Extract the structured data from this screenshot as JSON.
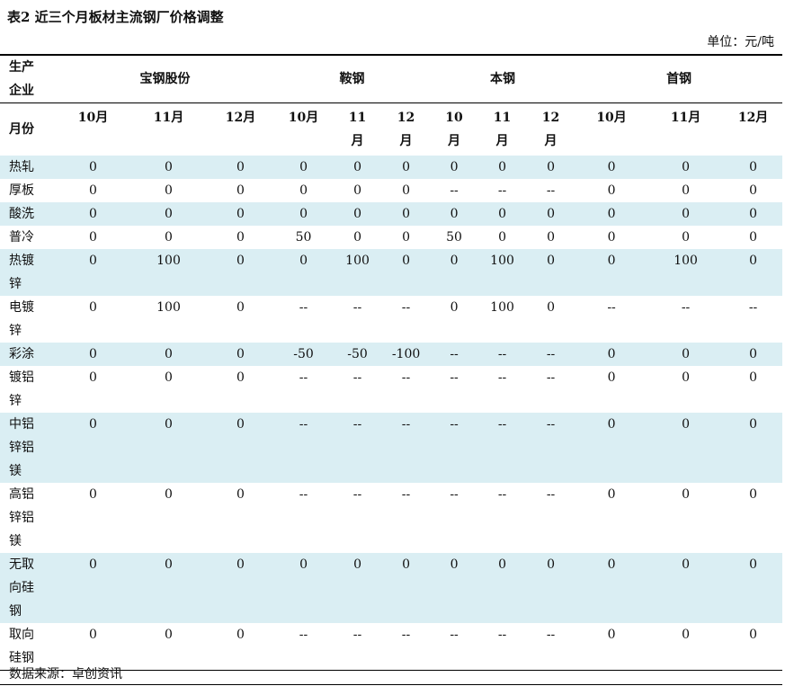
{
  "title": "表2 近三个月板材主流钢厂价格调整",
  "unit": "单位：元/吨",
  "header": {
    "company_label": "生产企业",
    "companies": [
      "宝钢股份",
      "鞍钢",
      "本钢",
      "首钢"
    ],
    "month_label": "月份",
    "months": [
      "10月",
      "11月",
      "12月",
      "10月",
      "11月",
      "12月",
      "10月",
      "11月",
      "12月",
      "10月",
      "11月",
      "12月"
    ]
  },
  "rows": [
    {
      "product": "热轧",
      "values": [
        "0",
        "0",
        "0",
        "0",
        "0",
        "0",
        "0",
        "0",
        "0",
        "0",
        "0",
        "0"
      ]
    },
    {
      "product": "厚板",
      "values": [
        "0",
        "0",
        "0",
        "0",
        "0",
        "0",
        "--",
        "--",
        "--",
        "0",
        "0",
        "0"
      ]
    },
    {
      "product": "酸洗",
      "values": [
        "0",
        "0",
        "0",
        "0",
        "0",
        "0",
        "0",
        "0",
        "0",
        "0",
        "0",
        "0"
      ]
    },
    {
      "product": "普冷",
      "values": [
        "0",
        "0",
        "0",
        "50",
        "0",
        "0",
        "50",
        "0",
        "0",
        "0",
        "0",
        "0"
      ]
    },
    {
      "product": "热镀锌",
      "values": [
        "0",
        "100",
        "0",
        "0",
        "100",
        "0",
        "0",
        "100",
        "0",
        "0",
        "100",
        "0"
      ]
    },
    {
      "product": "电镀锌",
      "values": [
        "0",
        "100",
        "0",
        "--",
        "--",
        "--",
        "0",
        "100",
        "0",
        "--",
        "--",
        "--"
      ]
    },
    {
      "product": "彩涂",
      "values": [
        "0",
        "0",
        "0",
        "-50",
        "-50",
        "-100",
        "--",
        "--",
        "--",
        "0",
        "0",
        "0"
      ]
    },
    {
      "product": "镀铝锌",
      "values": [
        "0",
        "0",
        "0",
        "--",
        "--",
        "--",
        "--",
        "--",
        "--",
        "0",
        "0",
        "0"
      ]
    },
    {
      "product": "中铝锌铝镁",
      "values": [
        "0",
        "0",
        "0",
        "--",
        "--",
        "--",
        "--",
        "--",
        "--",
        "0",
        "0",
        "0"
      ]
    },
    {
      "product": "高铝锌铝镁",
      "values": [
        "0",
        "0",
        "0",
        "--",
        "--",
        "--",
        "--",
        "--",
        "--",
        "0",
        "0",
        "0"
      ]
    },
    {
      "product": "无取向硅钢",
      "values": [
        "0",
        "0",
        "0",
        "0",
        "0",
        "0",
        "0",
        "0",
        "0",
        "0",
        "0",
        "0"
      ]
    },
    {
      "product": "取向硅钢",
      "values": [
        "0",
        "0",
        "0",
        "--",
        "--",
        "--",
        "--",
        "--",
        "--",
        "0",
        "0",
        "0"
      ]
    }
  ],
  "source": "数据来源：卓创资讯",
  "colors": {
    "row_shade": "#DAEEF3"
  }
}
